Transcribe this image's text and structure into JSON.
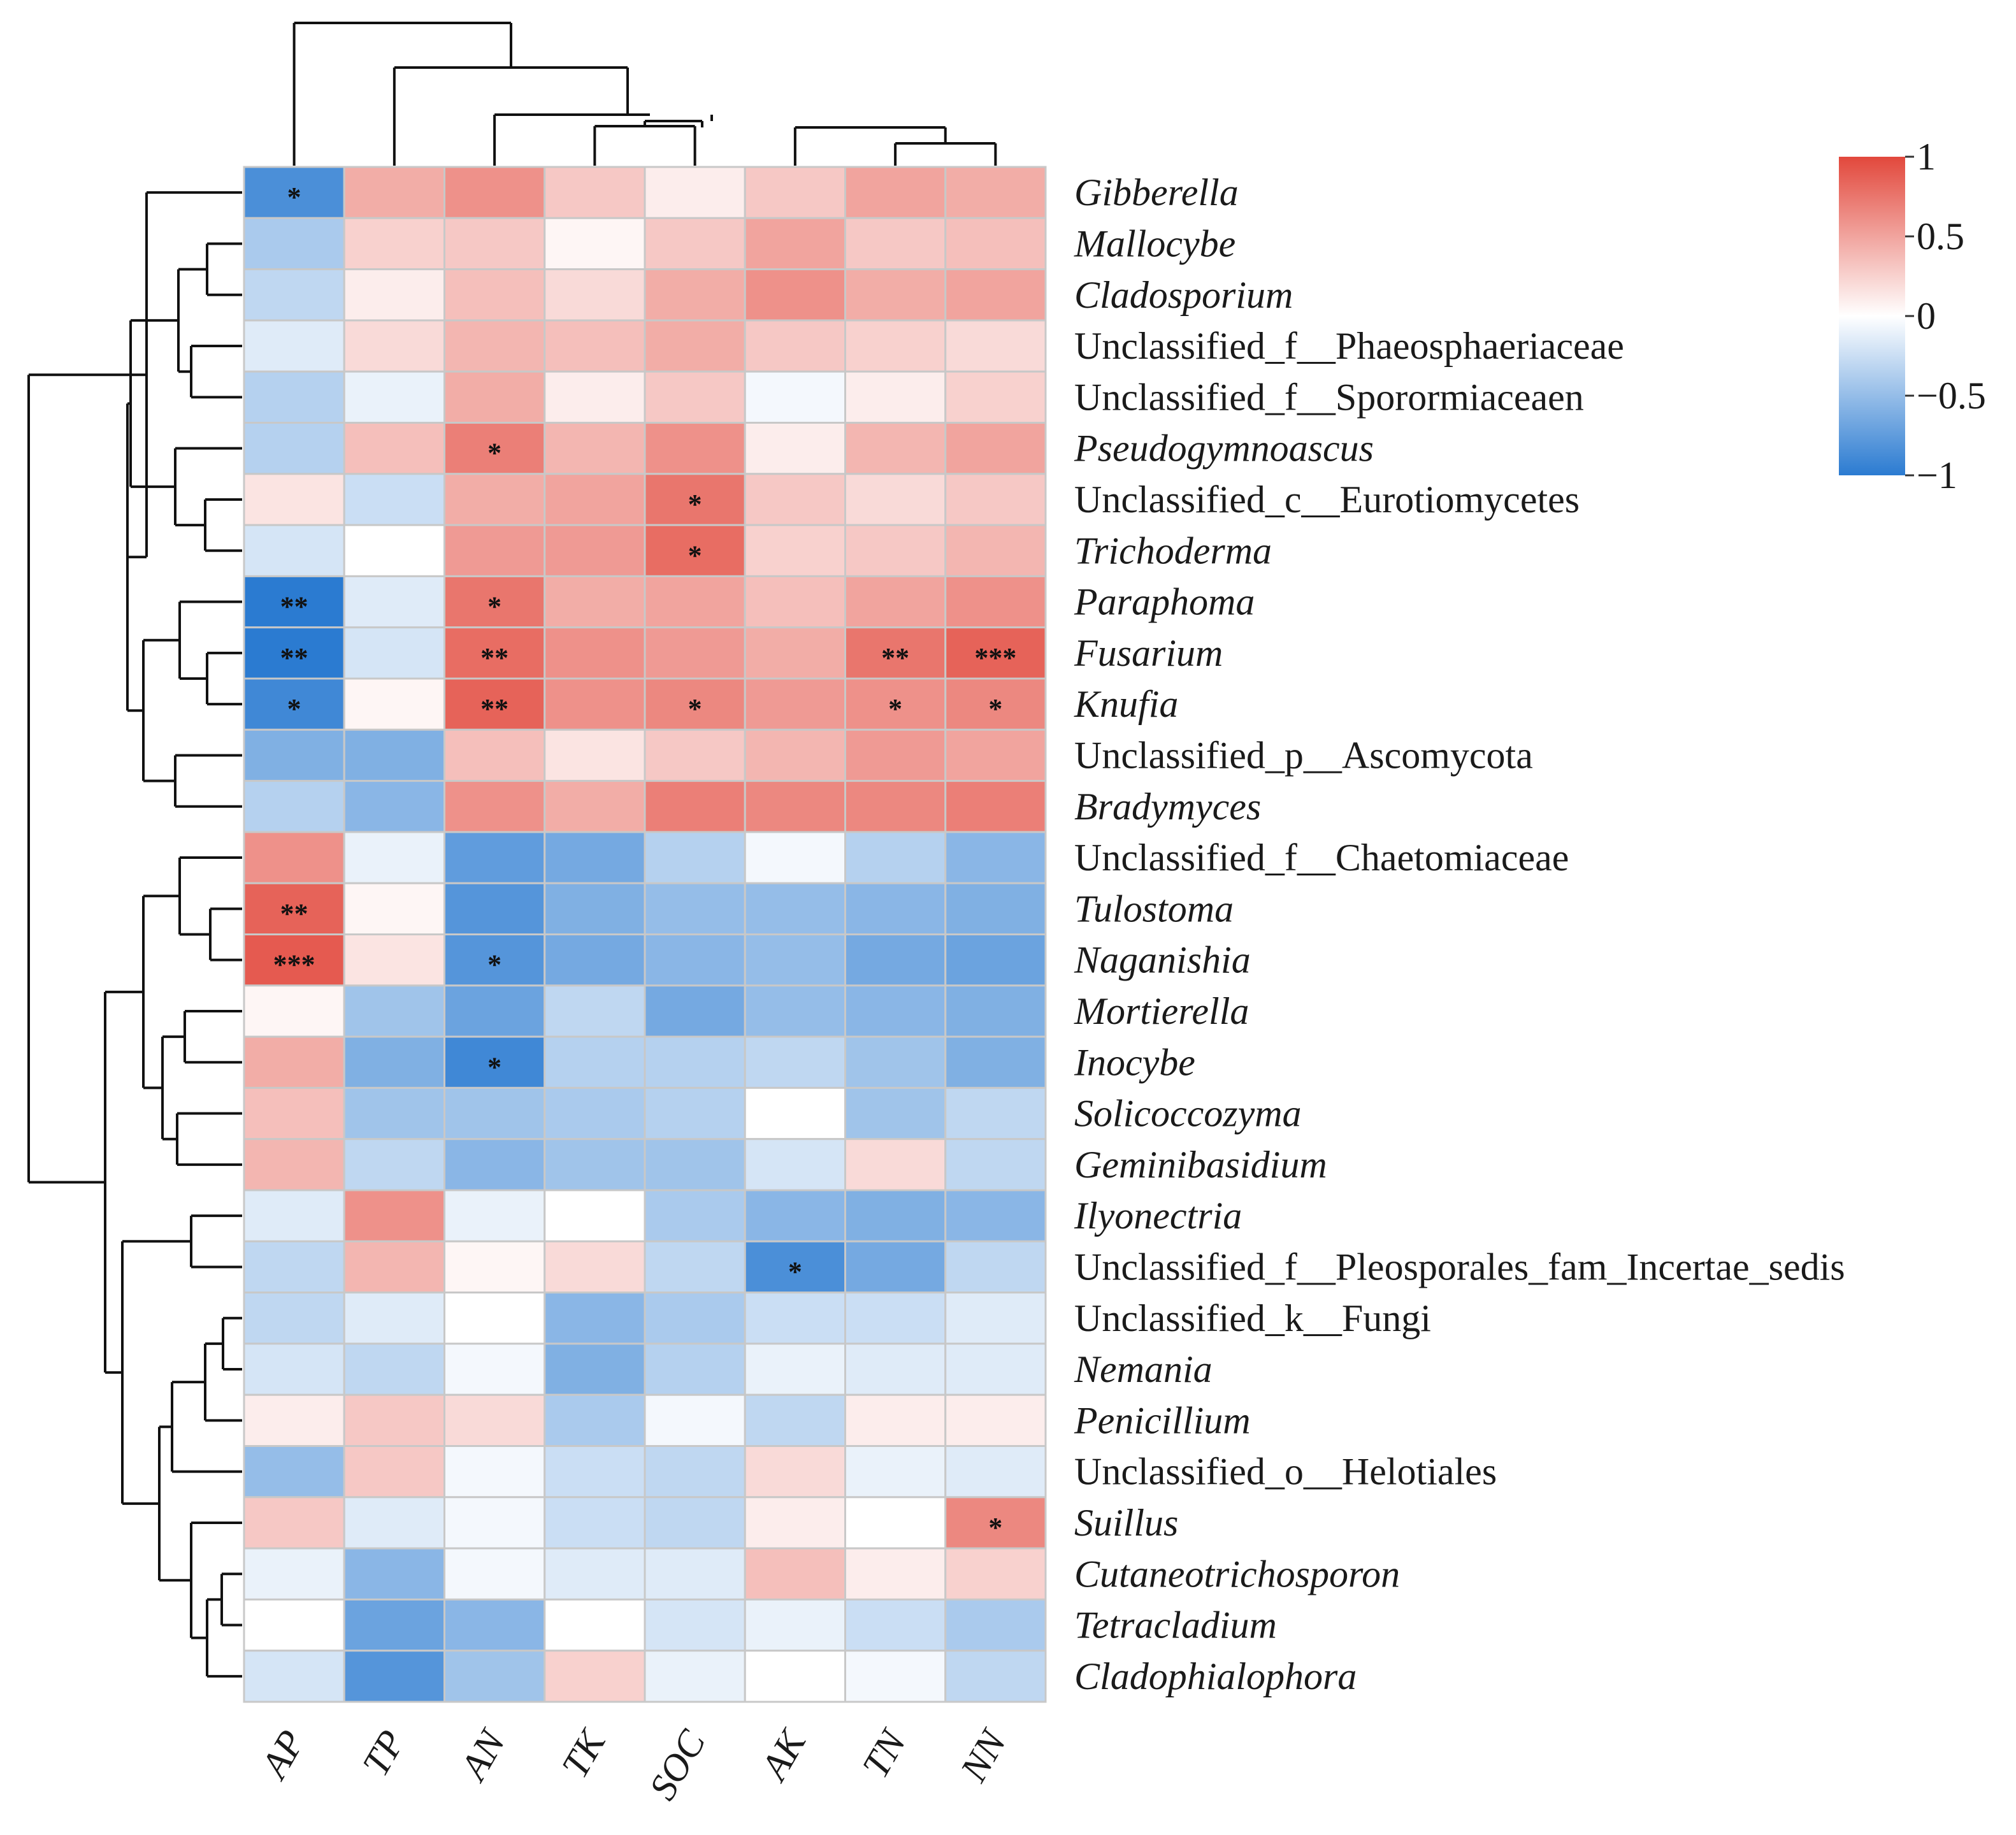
{
  "chart_data": {
    "type": "heatmap",
    "title": "",
    "columns": [
      "AP",
      "TP",
      "AN",
      "TK",
      "SOC",
      "AK",
      "TN",
      "NN"
    ],
    "rows": [
      {
        "label": "Gibberella",
        "italic": true,
        "values": [
          -0.85,
          0.45,
          0.6,
          0.3,
          0.1,
          0.3,
          0.5,
          0.45
        ],
        "sig": [
          "*",
          "",
          "",
          "",
          "",
          "",
          "",
          ""
        ]
      },
      {
        "label": "Mallocybe",
        "italic": true,
        "values": [
          -0.4,
          0.25,
          0.3,
          0.05,
          0.3,
          0.5,
          0.3,
          0.35
        ],
        "sig": [
          "",
          "",
          "",
          "",
          "",
          "",
          "",
          ""
        ]
      },
      {
        "label": "Cladosporium",
        "italic": true,
        "values": [
          -0.3,
          0.1,
          0.35,
          0.2,
          0.45,
          0.6,
          0.45,
          0.5
        ],
        "sig": [
          "",
          "",
          "",
          "",
          "",
          "",
          "",
          ""
        ]
      },
      {
        "label": "Unclassified_f__Phaeosphaeriaceae",
        "italic": false,
        "values": [
          -0.15,
          0.2,
          0.4,
          0.35,
          0.45,
          0.3,
          0.25,
          0.2
        ],
        "sig": [
          "",
          "",
          "",
          "",
          "",
          "",
          "",
          ""
        ]
      },
      {
        "label": "Unclassified_f__Sporormiaceaen",
        "italic": false,
        "values": [
          -0.35,
          -0.1,
          0.45,
          0.1,
          0.3,
          -0.05,
          0.1,
          0.25
        ],
        "sig": [
          "",
          "",
          "",
          "",
          "",
          "",
          "",
          ""
        ]
      },
      {
        "label": "Pseudogymnoascus",
        "italic": true,
        "values": [
          -0.35,
          0.35,
          0.7,
          0.4,
          0.6,
          0.1,
          0.4,
          0.5
        ],
        "sig": [
          "",
          "",
          "*",
          "",
          "",
          "",
          "",
          ""
        ]
      },
      {
        "label": "Unclassified_c__Eurotiomycetes",
        "italic": false,
        "values": [
          0.15,
          -0.25,
          0.45,
          0.5,
          0.75,
          0.3,
          0.2,
          0.3
        ],
        "sig": [
          "",
          "",
          "",
          "",
          "*",
          "",
          "",
          ""
        ]
      },
      {
        "label": "Trichoderma",
        "italic": true,
        "values": [
          -0.2,
          0.0,
          0.55,
          0.55,
          0.8,
          0.25,
          0.3,
          0.4
        ],
        "sig": [
          "",
          "",
          "",
          "",
          "*",
          "",
          "",
          ""
        ]
      },
      {
        "label": "Paraphoma",
        "italic": true,
        "values": [
          -1.0,
          -0.15,
          0.75,
          0.45,
          0.5,
          0.35,
          0.5,
          0.6
        ],
        "sig": [
          "**",
          "",
          "*",
          "",
          "",
          "",
          "",
          ""
        ]
      },
      {
        "label": "Fusarium",
        "italic": true,
        "values": [
          -1.0,
          -0.2,
          0.8,
          0.6,
          0.55,
          0.45,
          0.75,
          0.85
        ],
        "sig": [
          "**",
          "",
          "**",
          "",
          "",
          "",
          "**",
          "***"
        ]
      },
      {
        "label": "Knufia",
        "italic": true,
        "values": [
          -0.9,
          0.05,
          0.85,
          0.6,
          0.65,
          0.55,
          0.6,
          0.65
        ],
        "sig": [
          "*",
          "",
          "**",
          "",
          "*",
          "",
          "*",
          "*"
        ]
      },
      {
        "label": "Unclassified_p__Ascomycota",
        "italic": false,
        "values": [
          -0.6,
          -0.6,
          0.35,
          0.15,
          0.3,
          0.4,
          0.55,
          0.5
        ],
        "sig": [
          "",
          "",
          "",
          "",
          "",
          "",
          "",
          ""
        ]
      },
      {
        "label": "Bradymyces",
        "italic": true,
        "values": [
          -0.35,
          -0.55,
          0.6,
          0.45,
          0.7,
          0.65,
          0.65,
          0.7
        ],
        "sig": [
          "",
          "",
          "",
          "",
          "",
          "",
          "",
          ""
        ]
      },
      {
        "label": "Unclassified_f__Chaetomiaceae",
        "italic": false,
        "values": [
          0.6,
          -0.1,
          -0.75,
          -0.65,
          -0.35,
          -0.05,
          -0.35,
          -0.55
        ],
        "sig": [
          "",
          "",
          "",
          "",
          "",
          "",
          "",
          ""
        ]
      },
      {
        "label": "Tulostoma",
        "italic": true,
        "values": [
          0.85,
          0.05,
          -0.8,
          -0.6,
          -0.5,
          -0.5,
          -0.55,
          -0.6
        ],
        "sig": [
          "**",
          "",
          "",
          "",
          "",
          "",
          "",
          ""
        ]
      },
      {
        "label": "Naganishia",
        "italic": true,
        "values": [
          0.9,
          0.15,
          -0.8,
          -0.65,
          -0.55,
          -0.5,
          -0.65,
          -0.7
        ],
        "sig": [
          "***",
          "",
          "*",
          "",
          "",
          "",
          "",
          ""
        ]
      },
      {
        "label": "Mortierella",
        "italic": true,
        "values": [
          0.05,
          -0.45,
          -0.7,
          -0.3,
          -0.65,
          -0.5,
          -0.55,
          -0.6
        ],
        "sig": [
          "",
          "",
          "",
          "",
          "",
          "",
          "",
          ""
        ]
      },
      {
        "label": "Inocybe",
        "italic": true,
        "values": [
          0.45,
          -0.6,
          -0.9,
          -0.35,
          -0.35,
          -0.3,
          -0.45,
          -0.6
        ],
        "sig": [
          "",
          "",
          "*",
          "",
          "",
          "",
          "",
          ""
        ]
      },
      {
        "label": "Solicoccozyma",
        "italic": true,
        "values": [
          0.35,
          -0.45,
          -0.45,
          -0.4,
          -0.35,
          0.0,
          -0.45,
          -0.3
        ],
        "sig": [
          "",
          "",
          "",
          "",
          "",
          "",
          "",
          ""
        ]
      },
      {
        "label": "Geminibasidium",
        "italic": true,
        "values": [
          0.4,
          -0.3,
          -0.55,
          -0.45,
          -0.45,
          -0.2,
          0.2,
          -0.3
        ],
        "sig": [
          "",
          "",
          "",
          "",
          "",
          "",
          "",
          ""
        ]
      },
      {
        "label": "Ilyonectria",
        "italic": true,
        "values": [
          -0.15,
          0.6,
          -0.1,
          0.0,
          -0.4,
          -0.55,
          -0.6,
          -0.55
        ],
        "sig": [
          "",
          "",
          "",
          "",
          "",
          "",
          "",
          ""
        ]
      },
      {
        "label": "Unclassified_f__Pleosporales_fam_Incertae_sedis",
        "italic": false,
        "values": [
          -0.3,
          0.4,
          0.05,
          0.2,
          -0.3,
          -0.85,
          -0.65,
          -0.3
        ],
        "sig": [
          "",
          "",
          "",
          "",
          "",
          "*",
          "",
          ""
        ]
      },
      {
        "label": "Unclassified_k__Fungi",
        "italic": false,
        "values": [
          -0.3,
          -0.15,
          0.0,
          -0.55,
          -0.4,
          -0.25,
          -0.25,
          -0.15
        ],
        "sig": [
          "",
          "",
          "",
          "",
          "",
          "",
          "",
          ""
        ]
      },
      {
        "label": "Nemania",
        "italic": true,
        "values": [
          -0.2,
          -0.3,
          -0.05,
          -0.6,
          -0.35,
          -0.1,
          -0.15,
          -0.15
        ],
        "sig": [
          "",
          "",
          "",
          "",
          "",
          "",
          "",
          ""
        ]
      },
      {
        "label": "Penicillium",
        "italic": true,
        "values": [
          0.1,
          0.3,
          0.2,
          -0.4,
          -0.05,
          -0.3,
          0.1,
          0.1
        ],
        "sig": [
          "",
          "",
          "",
          "",
          "",
          "",
          "",
          ""
        ]
      },
      {
        "label": "Unclassified_o__Helotiales",
        "italic": false,
        "values": [
          -0.5,
          0.3,
          -0.05,
          -0.25,
          -0.3,
          0.2,
          -0.1,
          -0.15
        ],
        "sig": [
          "",
          "",
          "",
          "",
          "",
          "",
          "",
          ""
        ]
      },
      {
        "label": "Suillus",
        "italic": true,
        "values": [
          0.3,
          -0.15,
          -0.05,
          -0.25,
          -0.3,
          0.1,
          0.0,
          0.65
        ],
        "sig": [
          "",
          "",
          "",
          "",
          "",
          "",
          "",
          "*"
        ]
      },
      {
        "label": "Cutaneotrichosporon",
        "italic": true,
        "values": [
          -0.1,
          -0.55,
          -0.05,
          -0.15,
          -0.15,
          0.35,
          0.1,
          0.25
        ],
        "sig": [
          "",
          "",
          "",
          "",
          "",
          "",
          "",
          ""
        ]
      },
      {
        "label": "Tetracladium",
        "italic": true,
        "values": [
          0.0,
          -0.7,
          -0.55,
          0.0,
          -0.2,
          -0.1,
          -0.25,
          -0.4
        ],
        "sig": [
          "",
          "",
          "",
          "",
          "",
          "",
          "",
          ""
        ]
      },
      {
        "label": "Cladophialophora",
        "italic": true,
        "values": [
          -0.2,
          -0.8,
          -0.45,
          0.25,
          -0.1,
          0.0,
          -0.05,
          -0.3
        ],
        "sig": [
          "",
          "",
          "",
          "",
          "",
          "",
          "",
          ""
        ]
      }
    ],
    "colorbar": {
      "min": -1,
      "max": 1,
      "ticks": [
        1,
        0.5,
        0,
        -0.5,
        -1
      ],
      "tick_labels": [
        "1",
        "0.5",
        "0",
        "−0.5",
        "−1"
      ],
      "colors": {
        "low": "#2b7bd1",
        "mid": "#ffffff",
        "high": "#e2483c"
      }
    },
    "column_dendrogram": true,
    "row_dendrogram": true,
    "legend": "right"
  }
}
